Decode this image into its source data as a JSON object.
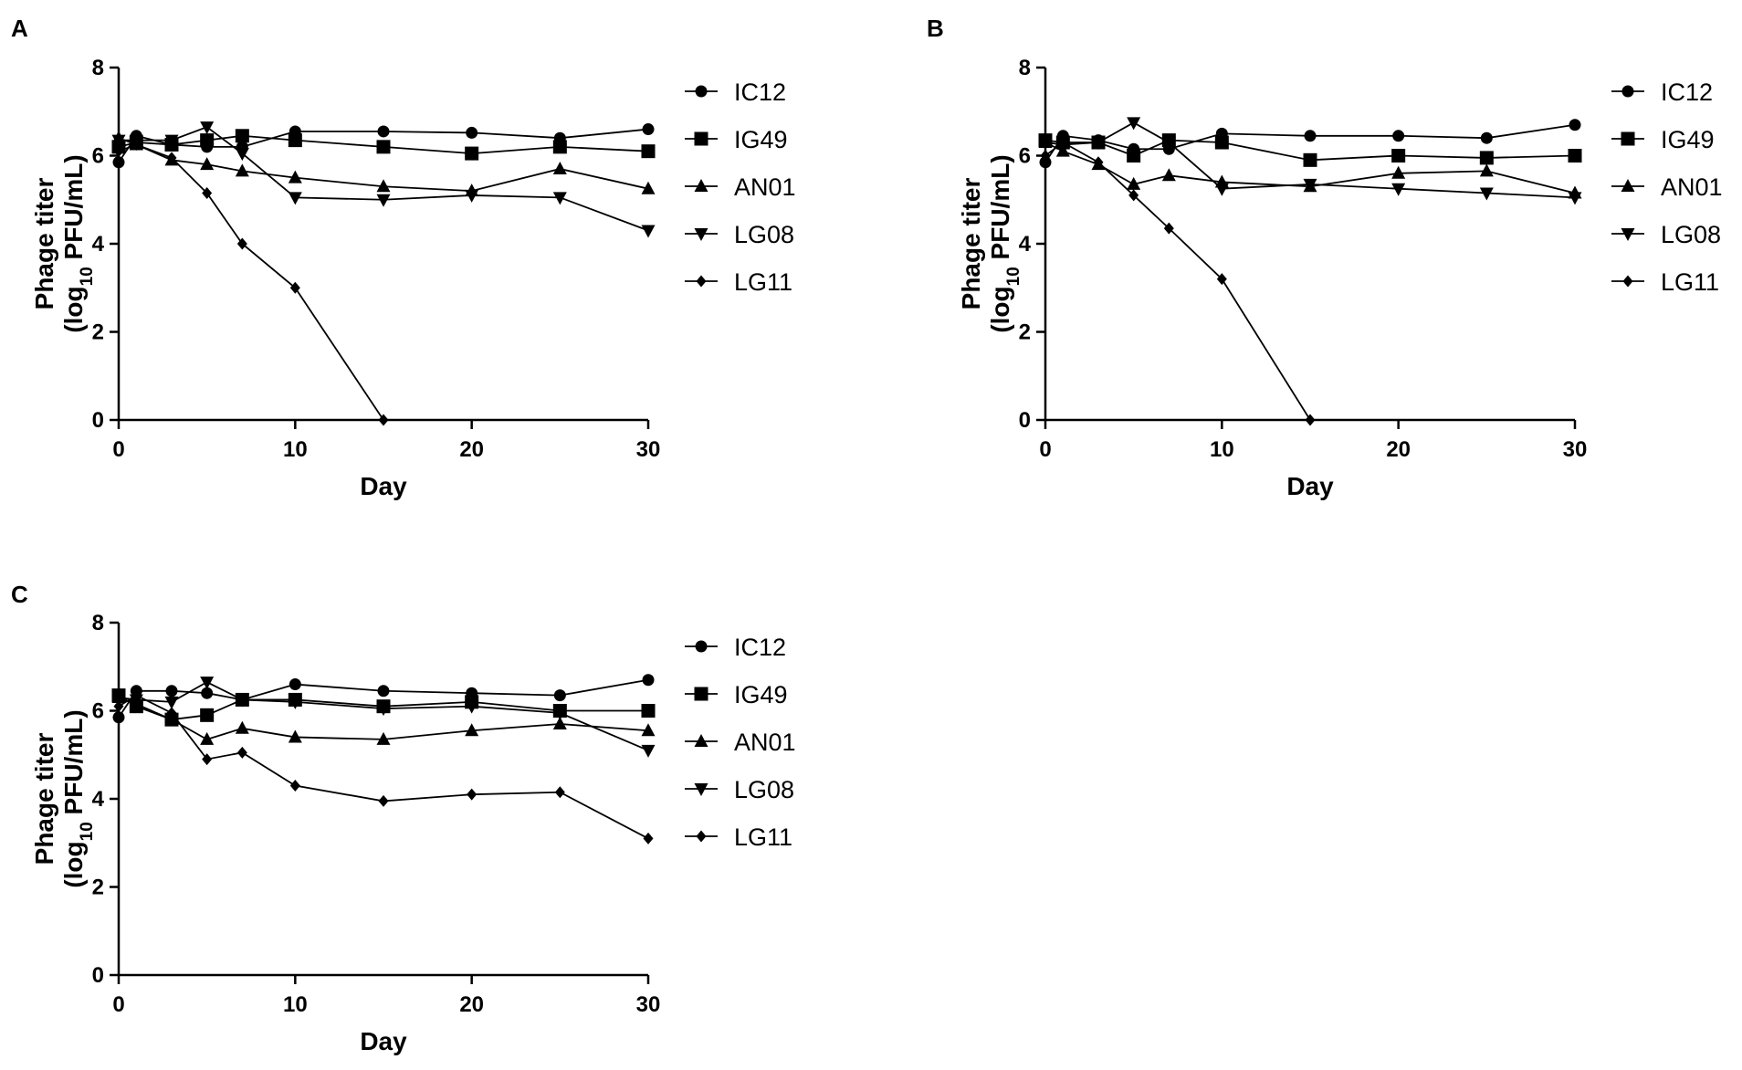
{
  "figure_label": "Phage stability panels",
  "chart_data": [
    {
      "type": "line",
      "panel_label": "A",
      "xlabel": "Day",
      "ylabel_main": "Phage titer",
      "ylabel_sub_prefix": "(log",
      "ylabel_sub_subscript": "10",
      "ylabel_sub_suffix": " PFU/mL)",
      "xlim": [
        0,
        30
      ],
      "ylim": [
        0,
        8
      ],
      "xticks": [
        0,
        10,
        20,
        30
      ],
      "yticks": [
        0,
        2,
        4,
        6,
        8
      ],
      "legend_position": "right",
      "x": [
        0,
        1,
        3,
        5,
        7,
        10,
        15,
        20,
        25,
        30
      ],
      "series": [
        {
          "name": "IC12",
          "marker": "circle",
          "values": [
            5.85,
            6.45,
            6.25,
            6.2,
            6.2,
            6.55,
            6.55,
            6.52,
            6.4,
            6.6
          ]
        },
        {
          "name": "IG49",
          "marker": "square",
          "values": [
            6.2,
            6.3,
            6.25,
            6.35,
            6.45,
            6.35,
            6.2,
            6.05,
            6.2,
            6.1
          ]
        },
        {
          "name": "AN01",
          "marker": "triangle-up",
          "values": [
            6.4,
            6.25,
            5.9,
            5.8,
            5.65,
            5.5,
            5.3,
            5.2,
            5.7,
            5.25
          ]
        },
        {
          "name": "LG08",
          "marker": "triangle-down",
          "values": [
            6.35,
            6.35,
            6.35,
            6.65,
            6.05,
            5.05,
            5.0,
            5.1,
            5.05,
            4.3
          ]
        },
        {
          "name": "LG11",
          "marker": "diamond",
          "values": [
            6.1,
            6.25,
            5.95,
            5.15,
            4.0,
            3.0,
            0.0,
            null,
            null,
            null
          ]
        }
      ]
    },
    {
      "type": "line",
      "panel_label": "B",
      "xlabel": "Day",
      "ylabel_main": "Phage titer",
      "ylabel_sub_prefix": "(log",
      "ylabel_sub_subscript": "10",
      "ylabel_sub_suffix": " PFU/mL)",
      "xlim": [
        0,
        30
      ],
      "ylim": [
        0,
        8
      ],
      "xticks": [
        0,
        10,
        20,
        30
      ],
      "yticks": [
        0,
        2,
        4,
        6,
        8
      ],
      "legend_position": "right",
      "x": [
        0,
        1,
        3,
        5,
        7,
        10,
        15,
        20,
        25,
        30
      ],
      "series": [
        {
          "name": "IC12",
          "marker": "circle",
          "values": [
            5.85,
            6.45,
            6.35,
            6.15,
            6.15,
            6.5,
            6.45,
            6.45,
            6.4,
            6.7
          ]
        },
        {
          "name": "IG49",
          "marker": "square",
          "values": [
            6.35,
            6.3,
            6.3,
            6.0,
            6.35,
            6.3,
            5.9,
            6.0,
            5.95,
            6.0
          ]
        },
        {
          "name": "AN01",
          "marker": "triangle-up",
          "values": [
            6.3,
            6.1,
            5.8,
            5.35,
            5.55,
            5.4,
            5.3,
            5.6,
            5.65,
            5.15
          ]
        },
        {
          "name": "LG08",
          "marker": "triangle-down",
          "values": [
            6.3,
            6.25,
            6.3,
            6.75,
            6.3,
            5.25,
            5.35,
            5.25,
            5.15,
            5.05
          ]
        },
        {
          "name": "LG11",
          "marker": "diamond",
          "values": [
            6.0,
            6.3,
            5.85,
            5.1,
            4.35,
            3.2,
            0.0,
            null,
            null,
            null
          ]
        }
      ]
    },
    {
      "type": "line",
      "panel_label": "C",
      "xlabel": "Day",
      "ylabel_main": "Phage titer",
      "ylabel_sub_prefix": "(log",
      "ylabel_sub_subscript": "10",
      "ylabel_sub_suffix": " PFU/mL)",
      "xlim": [
        0,
        30
      ],
      "ylim": [
        0,
        8
      ],
      "xticks": [
        0,
        10,
        20,
        30
      ],
      "yticks": [
        0,
        2,
        4,
        6,
        8
      ],
      "legend_position": "right",
      "x": [
        0,
        1,
        3,
        5,
        7,
        10,
        15,
        20,
        25,
        30
      ],
      "series": [
        {
          "name": "IC12",
          "marker": "circle",
          "values": [
            5.85,
            6.45,
            6.45,
            6.4,
            6.25,
            6.6,
            6.45,
            6.4,
            6.35,
            6.7
          ]
        },
        {
          "name": "IG49",
          "marker": "square",
          "values": [
            6.35,
            6.1,
            5.8,
            5.9,
            6.25,
            6.25,
            6.1,
            6.2,
            6.0,
            6.0
          ]
        },
        {
          "name": "AN01",
          "marker": "triangle-up",
          "values": [
            6.3,
            6.15,
            5.8,
            5.35,
            5.6,
            5.4,
            5.35,
            5.55,
            5.7,
            5.55
          ]
        },
        {
          "name": "LG08",
          "marker": "triangle-down",
          "values": [
            6.3,
            6.25,
            6.2,
            6.65,
            6.25,
            6.2,
            6.05,
            6.1,
            5.95,
            5.1
          ]
        },
        {
          "name": "LG11",
          "marker": "diamond",
          "values": [
            6.1,
            6.35,
            5.95,
            4.9,
            5.05,
            4.3,
            3.95,
            4.1,
            4.15,
            3.1
          ]
        }
      ]
    }
  ]
}
